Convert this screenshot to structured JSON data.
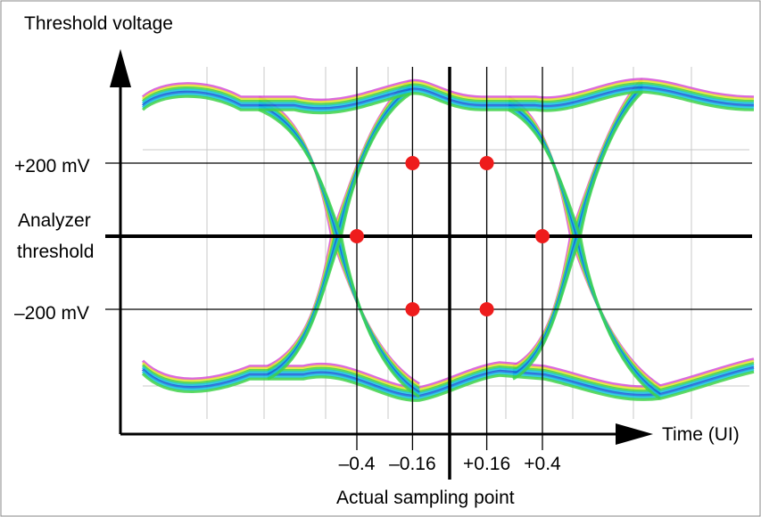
{
  "labels": {
    "y_axis": "Threshold voltage",
    "x_axis": "Time (UI)",
    "plus_200": "+200 mV",
    "minus_200": "–200 mV",
    "analyzer_line1": "Analyzer",
    "analyzer_line2": "threshold",
    "sampling_point": "Actual sampling point"
  },
  "ticks": [
    {
      "text": "–0.4",
      "t": -0.4
    },
    {
      "text": "–0.16",
      "t": -0.16
    },
    {
      "text": "+0.16",
      "t": 0.16
    },
    {
      "text": "+0.4",
      "t": 0.4
    }
  ],
  "sample_points": [
    {
      "t": -0.16,
      "v": 200
    },
    {
      "t": 0.16,
      "v": 200
    },
    {
      "t": -0.4,
      "v": 0
    },
    {
      "t": 0.4,
      "v": 0
    },
    {
      "t": -0.16,
      "v": -200
    },
    {
      "t": 0.16,
      "v": -200
    }
  ],
  "colors": {
    "sample_dot": "#ee1c1c",
    "eye_blue": "#1a5fd6",
    "eye_cyan": "#19c3e0",
    "eye_green": "#3fd24a",
    "eye_yellow": "#e6e62e",
    "eye_magenta": "#d64fd6",
    "axis": "#000000",
    "grid": "#c8c8c8"
  }
}
